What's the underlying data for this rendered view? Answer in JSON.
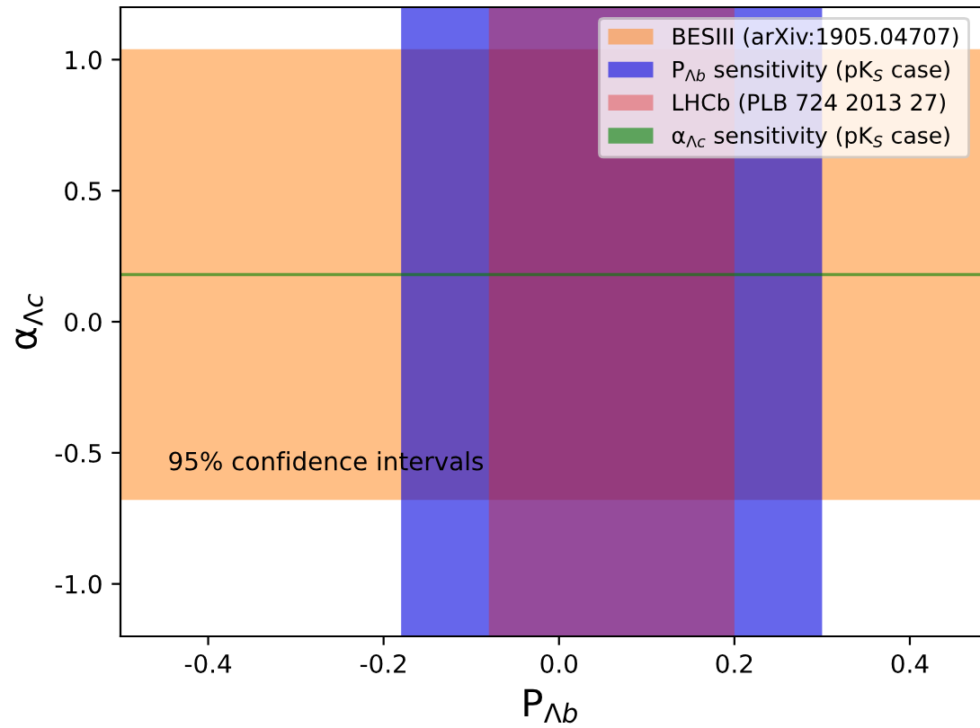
{
  "chart_data": {
    "type": "line",
    "xlabel": "P$_{Λb}$",
    "ylabel": "α$_{Λc}$",
    "xlim": [
      -0.5,
      0.48
    ],
    "xticks": [
      -0.4,
      -0.2,
      {
        "value": 0,
        "label": "0.0"
      },
      0.2,
      0.4
    ],
    "ylim": [
      -1.2,
      1.2
    ],
    "yticks": [
      {
        "value": -1,
        "label": "-1.0"
      },
      -0.5,
      {
        "value": 0,
        "label": "0.0"
      },
      0.5,
      {
        "value": 1,
        "label": "1.0"
      }
    ],
    "bands": [
      {
        "axis": "y",
        "from": -0.68,
        "to": 1.04,
        "label": "BESIII (arXiv:1905.04707)",
        "color": "#ff7f0e"
      },
      {
        "axis": "x",
        "from": -0.18,
        "to": 0.3,
        "label": "P$_{Λb}$ sensitivity (pK$_{S}$ case)",
        "color": "#0000dd"
      },
      {
        "axis": "x",
        "from": -0.08,
        "to": 0.2,
        "label": "LHCb (PLB 724 2013 27)",
        "color": "#dd2222"
      },
      {
        "axis": "y",
        "from": 0.174,
        "to": 0.186,
        "label": "α$_{Λc}$ sensitivity (pK$_{S}$ case)",
        "color": "#008000"
      }
    ],
    "annotations": [
      "95% confidence intervals"
    ],
    "legend": "top right"
  }
}
